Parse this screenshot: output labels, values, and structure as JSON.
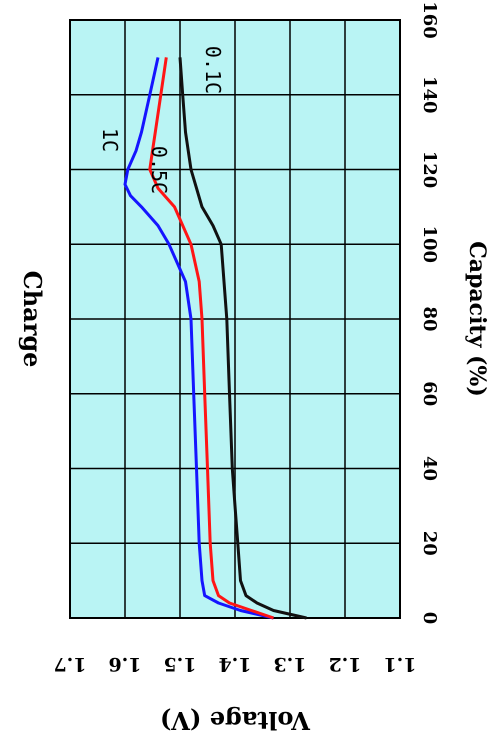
{
  "chart_data": {
    "type": "line",
    "title": "Charge",
    "xlabel": "Capacity (%)",
    "ylabel": "Voltage (V)",
    "xlim": [
      0,
      160
    ],
    "ylim": [
      1.1,
      1.7
    ],
    "x_ticks": [
      "0",
      "20",
      "40",
      "60",
      "80",
      "100",
      "120",
      "140",
      "160"
    ],
    "y_ticks": [
      "1.1",
      "1.2",
      "1.3",
      "1.4",
      "1.5",
      "1.6",
      "1.7"
    ],
    "grid": true,
    "orientation": "rotated-90-clockwise",
    "background_color": "#b9f4f4",
    "series": [
      {
        "name": "1C",
        "color": "#1515ff",
        "x": [
          0,
          2,
          4,
          6,
          10,
          20,
          40,
          60,
          80,
          90,
          100,
          105,
          110,
          113,
          116,
          120,
          125,
          130,
          140,
          150
        ],
        "y": [
          1.33,
          1.39,
          1.43,
          1.455,
          1.46,
          1.465,
          1.47,
          1.475,
          1.48,
          1.49,
          1.52,
          1.54,
          1.57,
          1.59,
          1.6,
          1.595,
          1.58,
          1.57,
          1.555,
          1.54
        ]
      },
      {
        "name": "0.5C",
        "color": "#ff1515",
        "x": [
          0,
          2,
          4,
          6,
          10,
          20,
          40,
          60,
          80,
          90,
          100,
          110,
          115,
          120,
          125,
          130,
          140,
          150
        ],
        "y": [
          1.33,
          1.37,
          1.41,
          1.43,
          1.44,
          1.445,
          1.45,
          1.455,
          1.46,
          1.465,
          1.48,
          1.51,
          1.54,
          1.555,
          1.55,
          1.545,
          1.535,
          1.525
        ]
      },
      {
        "name": "0.1C",
        "color": "#111111",
        "x": [
          0,
          2,
          4,
          6,
          10,
          20,
          30,
          40,
          60,
          80,
          100,
          105,
          110,
          115,
          120,
          130,
          140,
          150
        ],
        "y": [
          1.27,
          1.33,
          1.36,
          1.38,
          1.39,
          1.395,
          1.4,
          1.405,
          1.41,
          1.415,
          1.425,
          1.44,
          1.46,
          1.47,
          1.48,
          1.49,
          1.495,
          1.5
        ]
      }
    ],
    "annotations": [
      "1C",
      "0.5C",
      "0.1C"
    ]
  }
}
